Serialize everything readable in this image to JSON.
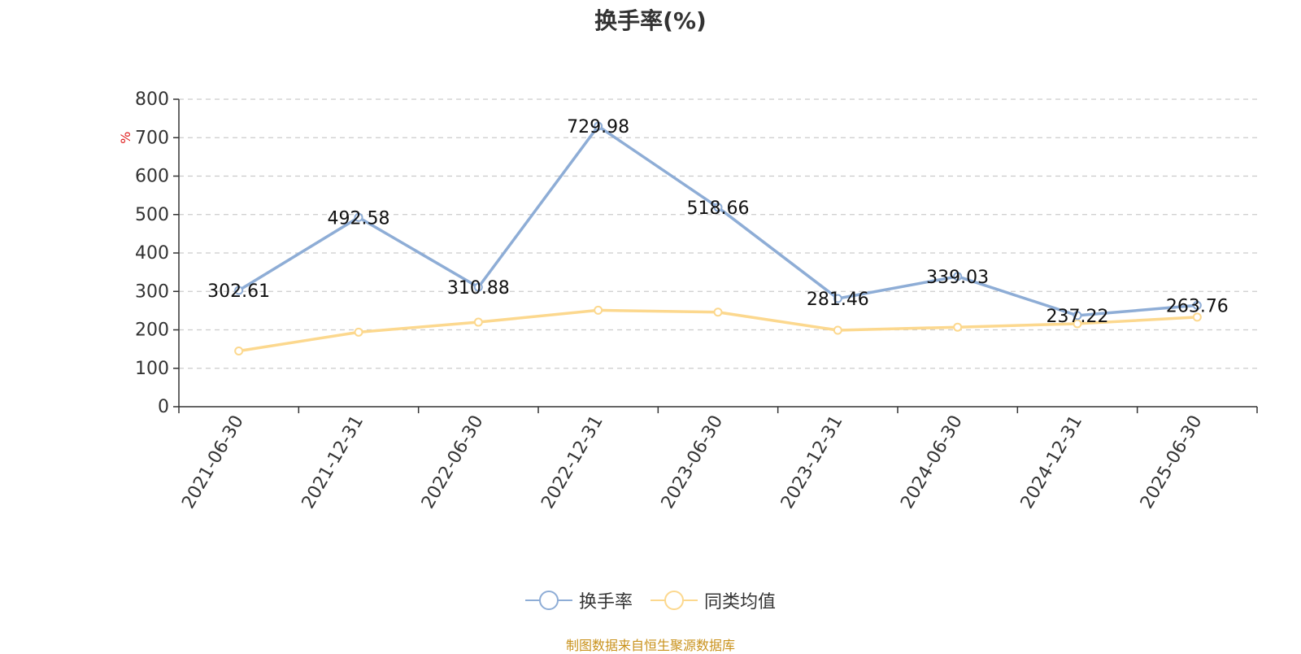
{
  "chart_data": {
    "type": "line",
    "title": "换手率(%)",
    "ylabel": "%",
    "xlabel": "",
    "categories": [
      "2021-06-30",
      "2021-12-31",
      "2022-06-30",
      "2022-12-31",
      "2023-06-30",
      "2023-12-31",
      "2024-06-30",
      "2024-12-31",
      "2025-06-30"
    ],
    "ylim": [
      0,
      800
    ],
    "yticks": [
      0,
      100,
      200,
      300,
      400,
      500,
      600,
      700,
      800
    ],
    "grid": true,
    "legend_position": "bottom-center",
    "series": [
      {
        "name": "换手率",
        "color": "#8eadd6",
        "show_labels": true,
        "values": [
          302.61,
          492.58,
          310.88,
          729.98,
          518.66,
          281.46,
          339.03,
          237.22,
          263.76
        ]
      },
      {
        "name": "同类均值",
        "color": "#fcd88e",
        "show_labels": false,
        "values": [
          145,
          194,
          220,
          251,
          246,
          199,
          207,
          216,
          233
        ]
      }
    ],
    "source": "制图数据来自恒生聚源数据库"
  }
}
